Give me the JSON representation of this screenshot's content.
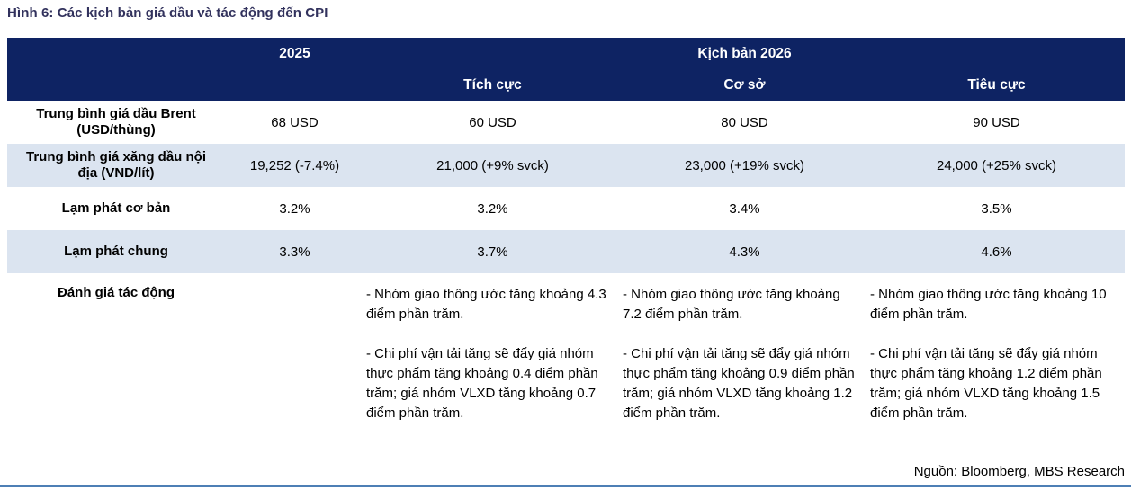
{
  "figure": {
    "title": "Hình 6: Các kịch bản giá dầu và tác động đến CPI",
    "source": "Nguồn: Bloomberg, MBS Research"
  },
  "table": {
    "header": {
      "col_2025": "2025",
      "group_2026": "Kịch bản 2026",
      "scenarios": [
        "Tích cực",
        "Cơ sở",
        "Tiêu cực"
      ]
    },
    "rows": [
      {
        "label": "Trung bình giá dầu Brent (USD/thùng)",
        "values": [
          "68 USD",
          "60 USD",
          "80 USD",
          "90 USD"
        ]
      },
      {
        "label": "Trung bình giá xăng dầu nội địa (VND/lít)",
        "values": [
          "19,252 (-7.4%)",
          "21,000 (+9% svck)",
          "23,000 (+19% svck)",
          "24,000 (+25% svck)"
        ]
      },
      {
        "label": "Lạm phát cơ bản",
        "values": [
          "3.2%",
          "3.2%",
          "3.4%",
          "3.5%"
        ]
      },
      {
        "label": "Lạm phát chung",
        "values": [
          "3.3%",
          "3.7%",
          "4.3%",
          "4.6%"
        ]
      }
    ],
    "impact": {
      "label": "Đánh giá tác động",
      "cells": [
        {
          "p1": "- Nhóm giao thông ước tăng khoảng 4.3 điểm phần trăm.",
          "p2": "- Chi phí vận tải tăng sẽ đẩy giá nhóm thực phẩm tăng khoảng 0.4 điểm phần trăm; giá nhóm VLXD tăng khoảng 0.7 điểm phần trăm."
        },
        {
          "p1": "- Nhóm giao thông ước tăng khoảng 7.2 điểm phần trăm.",
          "p2": "- Chi phí vận tải tăng sẽ đẩy giá nhóm thực phẩm tăng khoảng 0.9 điểm phần trăm; giá nhóm VLXD tăng khoảng 1.2 điểm phần trăm."
        },
        {
          "p1": "- Nhóm giao thông ước tăng khoảng 10 điểm phần trăm.",
          "p2": "- Chi phí vận tải tăng sẽ đẩy giá nhóm thực phẩm tăng khoảng 1.2 điểm phần trăm; giá nhóm VLXD tăng khoảng 1.5 điểm phần trăm."
        }
      ]
    }
  },
  "colors": {
    "header_bg": "#0e2363",
    "alt_row_bg": "#dbe4f0",
    "title_color": "#32325d",
    "bottom_rule": "#4d7fb5"
  }
}
